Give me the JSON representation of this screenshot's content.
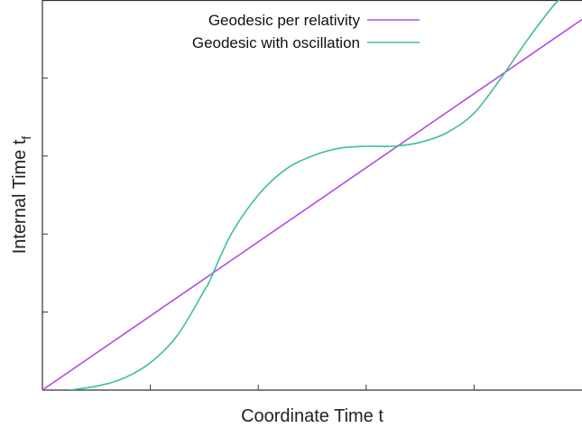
{
  "chart_data": {
    "type": "line",
    "title": "",
    "xlabel": "Coordinate Time t",
    "ylabel": "Internal Time t",
    "ylabel_subscript": "f",
    "xlim": [
      0,
      1
    ],
    "ylim": [
      0,
      1
    ],
    "grid": false,
    "legend_position": "top-center",
    "series": [
      {
        "name": "Geodesic per relativity",
        "color": "#b54ee0",
        "x": [
          0,
          1
        ],
        "y": [
          0,
          0.95
        ]
      },
      {
        "name": "Geodesic with oscillation",
        "color": "#3fbf98",
        "x": [
          0.05,
          0.1,
          0.15,
          0.2,
          0.25,
          0.3,
          0.31,
          0.35,
          0.4,
          0.45,
          0.5,
          0.55,
          0.6,
          0.65,
          0.7,
          0.75,
          0.8,
          0.85,
          0.9,
          0.95,
          0.97,
          1.0
        ],
        "y": [
          0.0,
          0.01,
          0.03,
          0.07,
          0.14,
          0.255,
          0.28,
          0.4,
          0.5,
          0.565,
          0.6,
          0.62,
          0.625,
          0.625,
          0.635,
          0.66,
          0.71,
          0.8,
          0.9,
          0.99,
          1.01,
          1.06
        ]
      }
    ],
    "x_ticks": [
      0.2,
      0.4,
      0.6,
      0.8
    ],
    "y_ticks": [
      0.2,
      0.4,
      0.6,
      0.8
    ]
  }
}
